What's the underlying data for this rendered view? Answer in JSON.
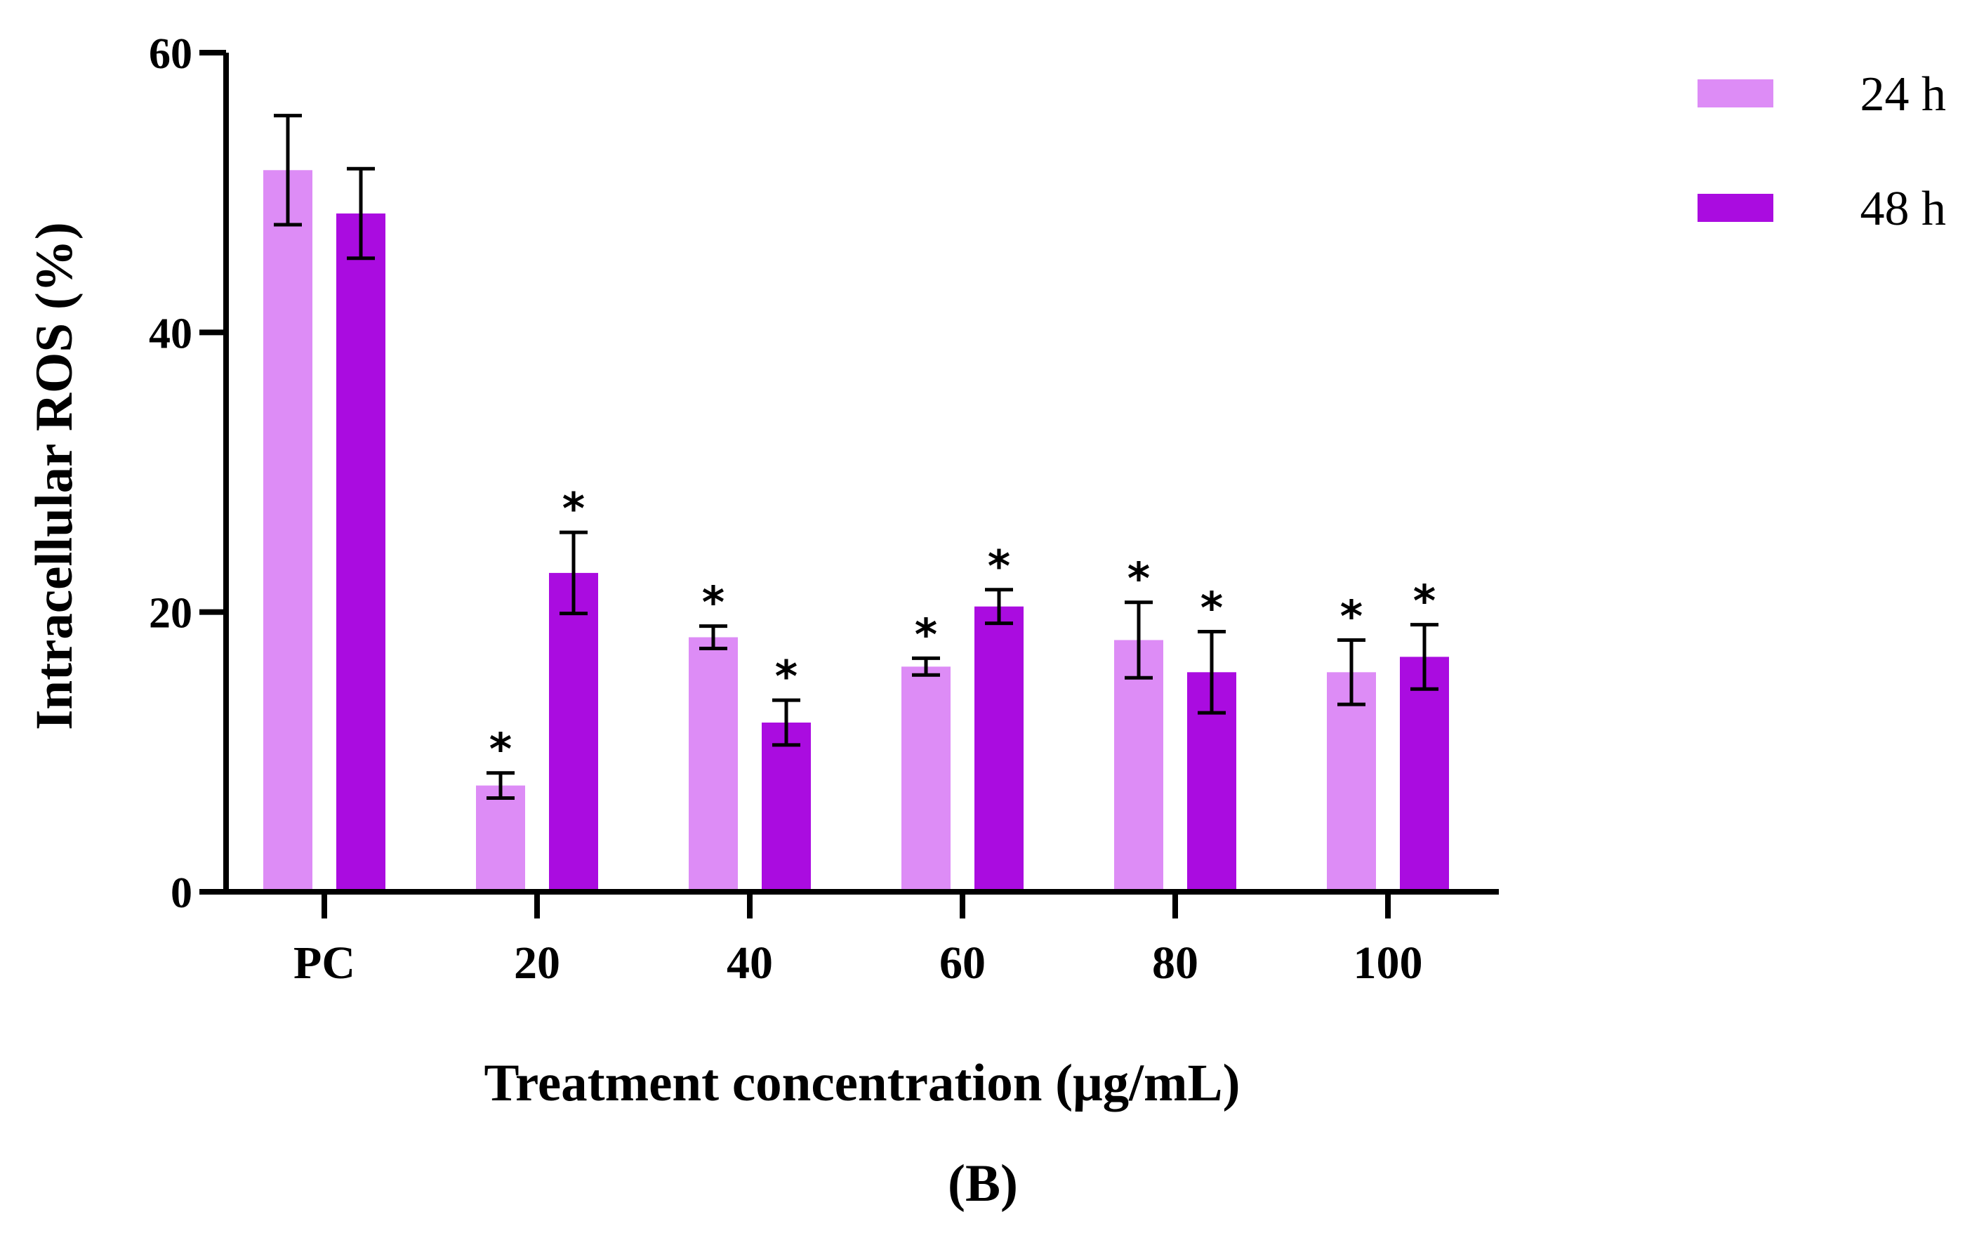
{
  "chart_data": {
    "type": "bar",
    "title": "",
    "panel_label": "(B)",
    "xlabel": "Treatment concentration (μg/mL)",
    "ylabel": "Intracellular ROS (%)",
    "ylim": [
      0,
      60
    ],
    "yticks": [
      0,
      20,
      40,
      60
    ],
    "categories": [
      "PC",
      "20",
      "40",
      "60",
      "80",
      "100"
    ],
    "series": [
      {
        "name": "24 h",
        "color": "#dd8cf6",
        "values": [
          51.6,
          7.6,
          18.2,
          16.1,
          18.0,
          15.7
        ],
        "errors": [
          3.9,
          0.9,
          0.8,
          0.6,
          2.7,
          2.3
        ],
        "significance": [
          "",
          "*",
          "*",
          "*",
          "*",
          "*"
        ]
      },
      {
        "name": "48 h",
        "color": "#aa0ce0",
        "values": [
          48.5,
          22.8,
          12.1,
          20.4,
          15.7,
          16.8
        ],
        "errors": [
          3.2,
          2.9,
          1.6,
          1.2,
          2.9,
          2.3
        ],
        "significance": [
          "",
          "*",
          "*",
          "*",
          "*",
          "*"
        ]
      }
    ],
    "legend": {
      "position": "top-right",
      "entries": [
        "24 h",
        "48 h"
      ]
    },
    "grid": false
  }
}
